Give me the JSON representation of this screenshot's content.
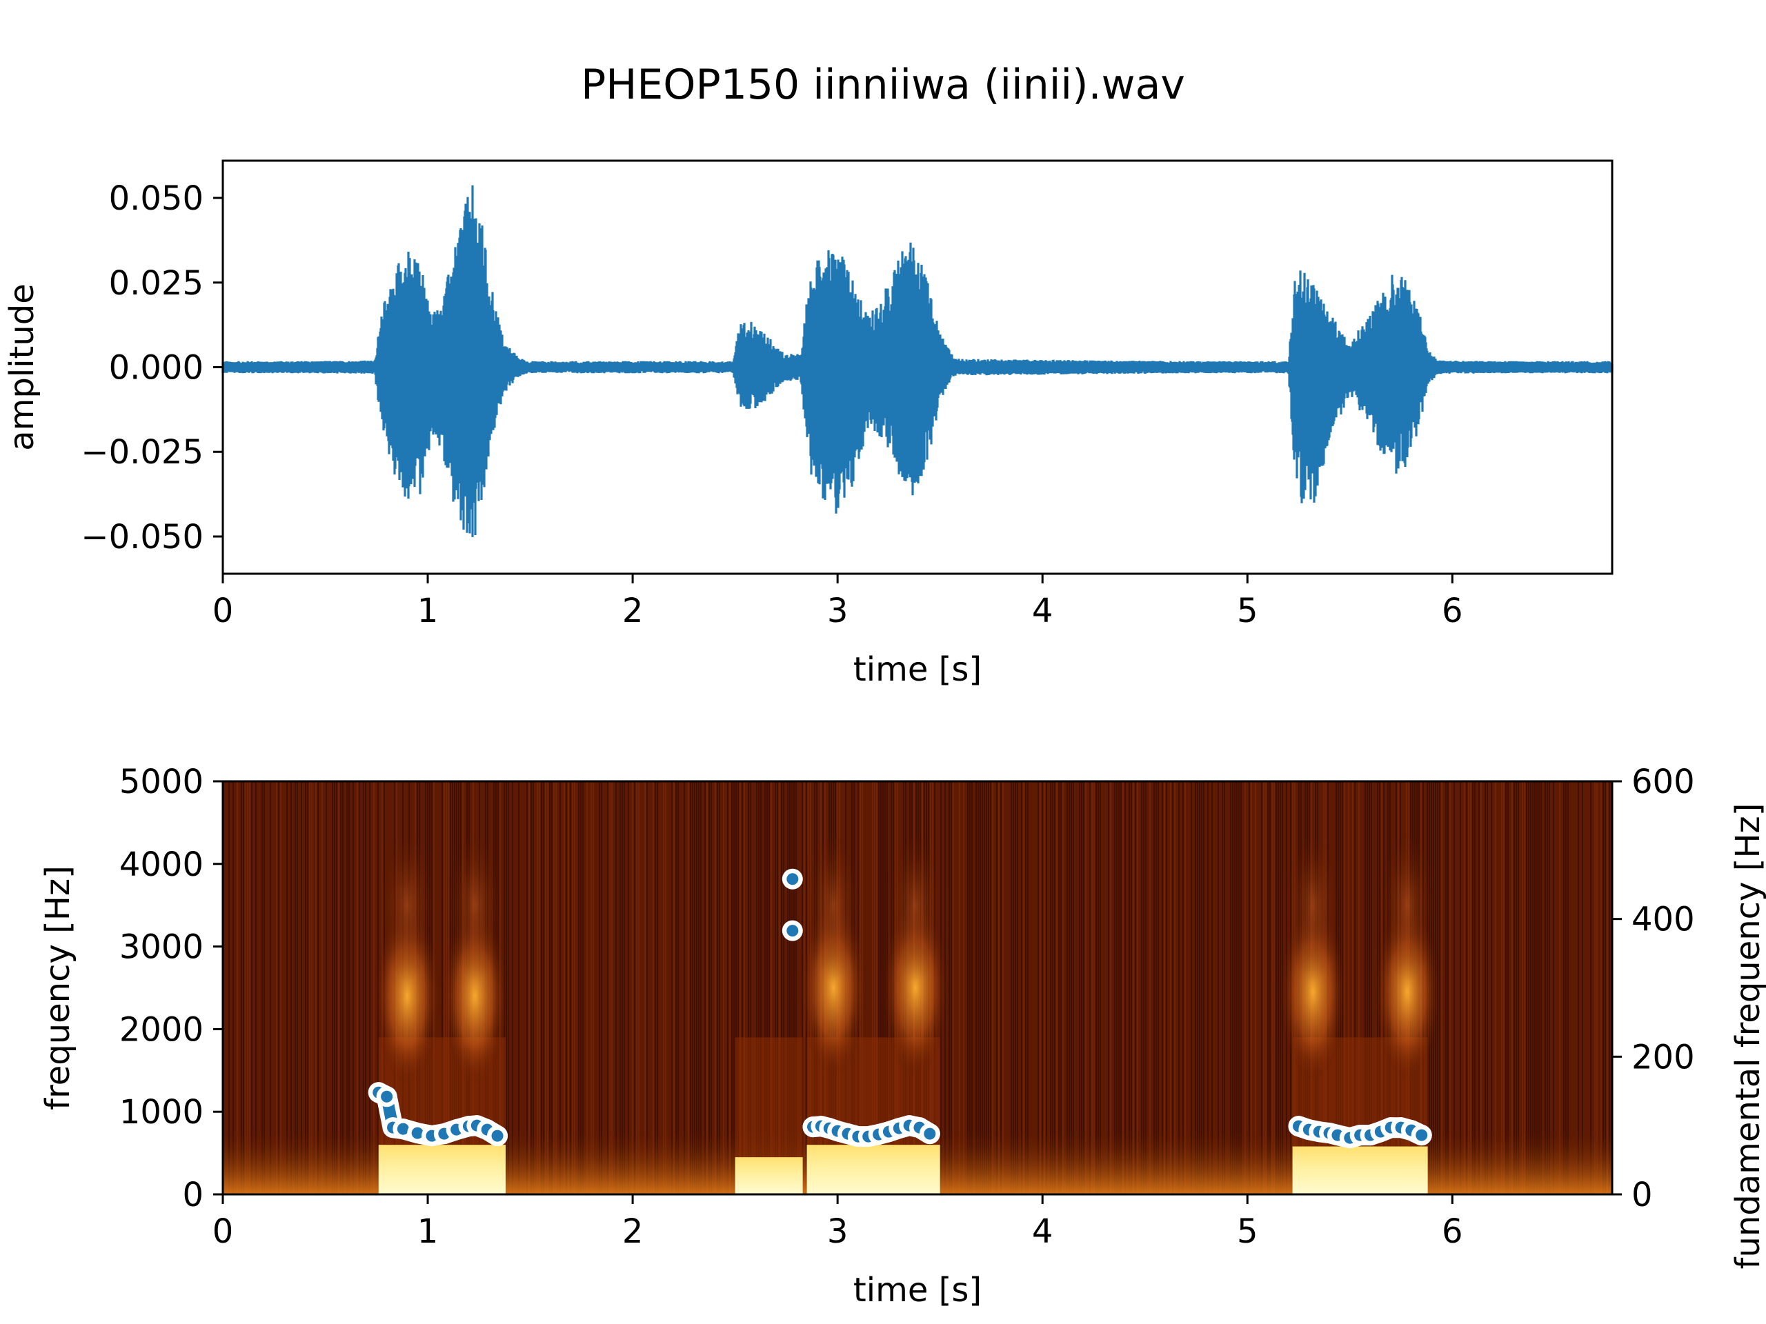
{
  "figure": {
    "title": "PHEOP150 iinniiwa (iinii).wav"
  },
  "chart_data": [
    {
      "type": "line",
      "name": "waveform",
      "xlabel": "time [s]",
      "ylabel": "amplitude",
      "xlim": [
        0,
        6.78
      ],
      "ylim": [
        -0.061,
        0.061
      ],
      "xticks": [
        0,
        1,
        2,
        3,
        4,
        5,
        6
      ],
      "yticks": [
        0.05,
        0.025,
        0.0,
        -0.025,
        -0.05
      ],
      "yticklabels": [
        "0.050",
        "0.025",
        "0.000",
        "−0.025",
        "−0.050"
      ],
      "color": "#1f77b4",
      "grid": false,
      "noise_floor": 0.0015,
      "envelope": {
        "t": [
          0,
          0.74,
          0.78,
          0.85,
          0.9,
          0.97,
          1.02,
          1.07,
          1.13,
          1.18,
          1.22,
          1.26,
          1.31,
          1.37,
          1.44,
          1.5,
          2.49,
          2.52,
          2.58,
          2.65,
          2.74,
          2.82,
          2.85,
          2.88,
          2.95,
          3.0,
          3.05,
          3.15,
          3.25,
          3.33,
          3.38,
          3.45,
          3.5,
          3.57,
          5.2,
          5.23,
          5.27,
          5.33,
          5.4,
          5.5,
          5.6,
          5.68,
          5.72,
          5.77,
          5.84,
          5.88,
          5.93,
          6.72,
          6.78
        ],
        "pos": [
          0.0015,
          0.002,
          0.018,
          0.031,
          0.035,
          0.03,
          0.016,
          0.02,
          0.035,
          0.05,
          0.054,
          0.045,
          0.025,
          0.008,
          0.003,
          0.0015,
          0.0015,
          0.013,
          0.014,
          0.01,
          0.004,
          0.004,
          0.02,
          0.03,
          0.035,
          0.035,
          0.03,
          0.015,
          0.025,
          0.038,
          0.038,
          0.025,
          0.01,
          0.0025,
          0.0015,
          0.028,
          0.029,
          0.025,
          0.016,
          0.008,
          0.016,
          0.025,
          0.029,
          0.028,
          0.016,
          0.006,
          0.002,
          0.0015,
          0.0015
        ],
        "neg": [
          0.0015,
          0.002,
          0.02,
          0.035,
          0.04,
          0.038,
          0.02,
          0.025,
          0.042,
          0.051,
          0.055,
          0.045,
          0.022,
          0.008,
          0.003,
          0.0015,
          0.0015,
          0.012,
          0.013,
          0.01,
          0.004,
          0.004,
          0.022,
          0.036,
          0.04,
          0.048,
          0.04,
          0.018,
          0.025,
          0.037,
          0.04,
          0.025,
          0.01,
          0.0025,
          0.0015,
          0.03,
          0.042,
          0.04,
          0.022,
          0.008,
          0.018,
          0.03,
          0.032,
          0.03,
          0.018,
          0.006,
          0.002,
          0.0015,
          0.0015
        ]
      }
    },
    {
      "type": "heatmap",
      "name": "spectrogram",
      "xlabel": "time [s]",
      "ylabel": "frequency [Hz]",
      "y2label": "fundamental frequency [Hz]",
      "xlim": [
        0,
        6.78
      ],
      "ylim": [
        0,
        5000
      ],
      "y2lim": [
        0,
        600
      ],
      "xticks": [
        0,
        1,
        2,
        3,
        4,
        5,
        6
      ],
      "yticks": [
        0,
        1000,
        2000,
        3000,
        4000,
        5000
      ],
      "y2ticks": [
        0,
        200,
        400,
        600
      ],
      "colormap": "afmhot",
      "grid": false,
      "syllables": [
        {
          "t0": 0.76,
          "t1": 1.38,
          "fill_to": 600,
          "formant_t": [
            0.9,
            1.23
          ],
          "formant_f": 2400
        },
        {
          "t0": 2.5,
          "t1": 2.83,
          "fill_to": 450,
          "formant_t": [],
          "formant_f": 0
        },
        {
          "t0": 2.85,
          "t1": 3.5,
          "fill_to": 600,
          "formant_t": [
            2.98,
            3.38
          ],
          "formant_f": 2500
        },
        {
          "t0": 5.22,
          "t1": 5.88,
          "fill_to": 580,
          "formant_t": [
            5.32,
            5.78
          ],
          "formant_f": 2450
        }
      ],
      "f0_series": {
        "name": "f0",
        "color": "#1f77b4",
        "t": [
          0.76,
          0.8,
          0.83,
          0.88,
          0.95,
          1.02,
          1.08,
          1.14,
          1.2,
          1.24,
          1.29,
          1.34,
          2.78,
          2.78,
          2.88,
          2.92,
          2.96,
          3.0,
          3.05,
          3.1,
          3.15,
          3.2,
          3.25,
          3.3,
          3.35,
          3.4,
          3.45,
          5.25,
          5.3,
          5.35,
          5.4,
          5.44,
          5.5,
          5.55,
          5.6,
          5.65,
          5.7,
          5.75,
          5.8,
          5.85
        ],
        "f0": [
          148,
          142,
          97,
          95,
          89,
          85,
          88,
          94,
          99,
          100,
          94,
          85,
          458,
          383,
          98,
          99,
          96,
          92,
          88,
          84,
          84,
          87,
          91,
          96,
          100,
          97,
          88,
          99,
          94,
          91,
          89,
          86,
          82,
          86,
          86,
          91,
          97,
          97,
          93,
          86
        ]
      }
    }
  ]
}
